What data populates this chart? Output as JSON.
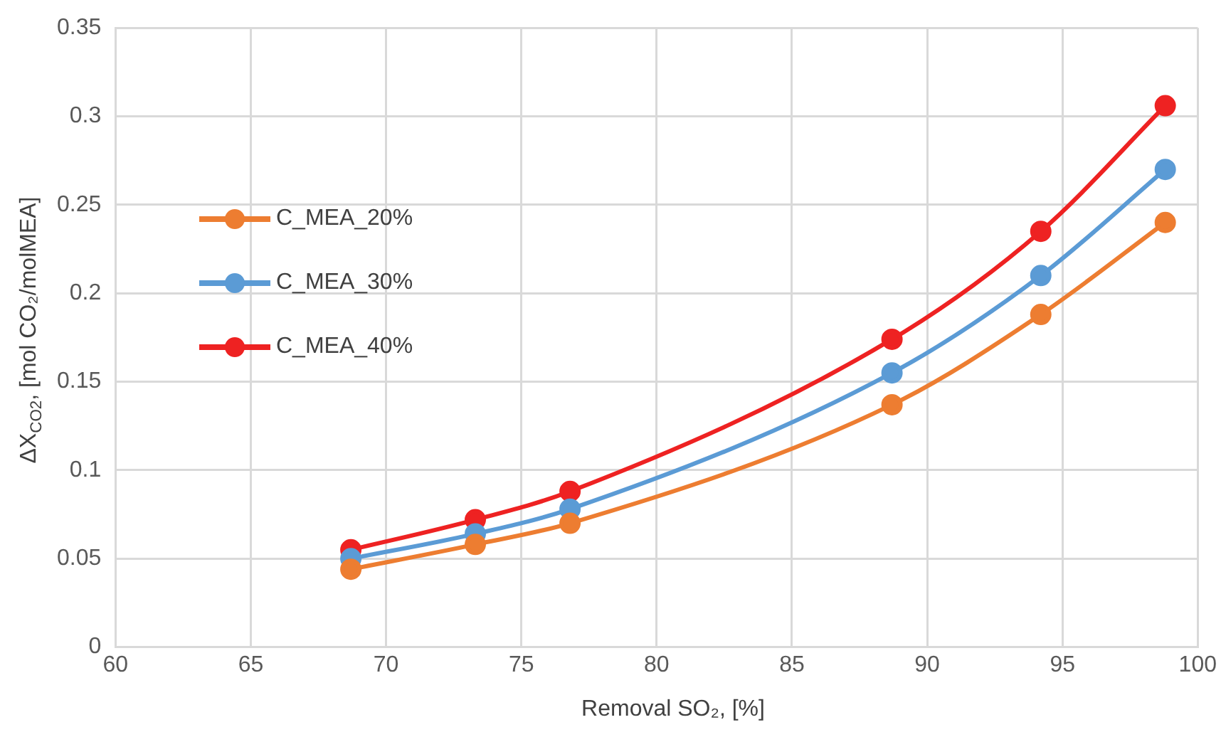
{
  "chart_data": {
    "type": "line",
    "xlabel": "Removal SO₂, [%]",
    "ylabel": "ΔX$_{CO2}$, [mol CO₂/molMEA]",
    "x": [
      68.7,
      73.3,
      76.8,
      88.7,
      94.2,
      98.8
    ],
    "series": [
      {
        "name": "C_MEA_20%",
        "color": "#ed7d31",
        "values": [
          0.044,
          0.058,
          0.07,
          0.137,
          0.188,
          0.24
        ]
      },
      {
        "name": "C_MEA_30%",
        "color": "#5b9bd5",
        "values": [
          0.05,
          0.064,
          0.078,
          0.155,
          0.21,
          0.27
        ]
      },
      {
        "name": "C_MEA_40%",
        "color": "#ee2222",
        "values": [
          0.055,
          0.072,
          0.088,
          0.174,
          0.235,
          0.306
        ]
      }
    ],
    "xlim": [
      60,
      100
    ],
    "xticks": [
      60,
      65,
      70,
      75,
      80,
      85,
      90,
      95,
      100
    ],
    "ylim": [
      0,
      0.35
    ],
    "yticks": [
      0,
      0.05,
      0.1,
      0.15,
      0.2,
      0.25,
      0.3,
      0.35
    ],
    "grid": true,
    "legend": "left",
    "marker": "circle",
    "line_style": "solid"
  }
}
